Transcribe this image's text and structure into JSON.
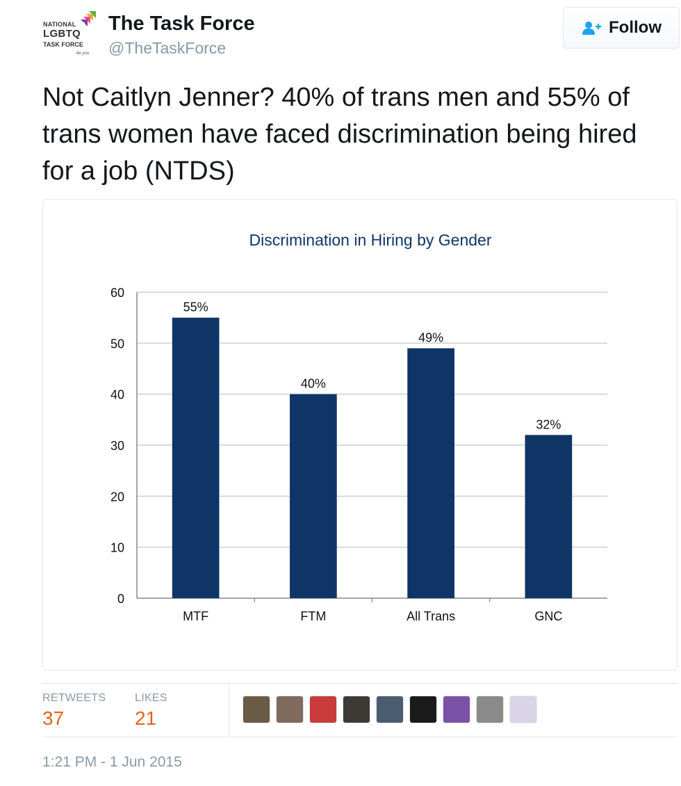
{
  "author": {
    "name": "The Task Force",
    "handle": "@TheTaskForce",
    "logo_text": [
      "NATIONAL",
      "LGBTQ",
      "TASK FORCE",
      "be you."
    ]
  },
  "follow_button": {
    "label": "Follow",
    "icon": "add-user-icon"
  },
  "tweet": {
    "text": "Not Caitlyn Jenner? 40% of trans men and 55% of trans women have faced discrimination being hired for a job (NTDS)"
  },
  "chart_data": {
    "type": "bar",
    "title": "Discrimination in Hiring by Gender",
    "categories": [
      "MTF",
      "FTM",
      "All Trans",
      "GNC"
    ],
    "values": [
      55,
      40,
      49,
      32
    ],
    "data_labels": [
      "55%",
      "40%",
      "49%",
      "32%"
    ],
    "ylim": [
      0,
      60
    ],
    "yticks": [
      0,
      10,
      20,
      30,
      40,
      50,
      60
    ],
    "grid": true,
    "bar_color": "#0f3566",
    "xlabel": "",
    "ylabel": ""
  },
  "stats": {
    "retweets": {
      "label": "RETWEETS",
      "value": "37"
    },
    "likes": {
      "label": "LIKES",
      "value": "21"
    }
  },
  "likers": [
    {
      "icon": "avatar-1",
      "color": "#6b5a45"
    },
    {
      "icon": "avatar-2",
      "color": "#7f6a5c"
    },
    {
      "icon": "avatar-3",
      "color": "#c93a3a"
    },
    {
      "icon": "avatar-4",
      "color": "#3d3a36"
    },
    {
      "icon": "avatar-5",
      "color": "#4a5c70"
    },
    {
      "icon": "avatar-6",
      "color": "#1a1a1a"
    },
    {
      "icon": "avatar-7",
      "color": "#7b52a6"
    },
    {
      "icon": "avatar-8",
      "color": "#8a8a8a"
    },
    {
      "icon": "avatar-9",
      "color": "#d9d4e8"
    }
  ],
  "timestamp": "1:21 PM - 1 Jun 2015",
  "colors": {
    "accent_orange": "#e0641f",
    "muted": "#8899a6"
  }
}
